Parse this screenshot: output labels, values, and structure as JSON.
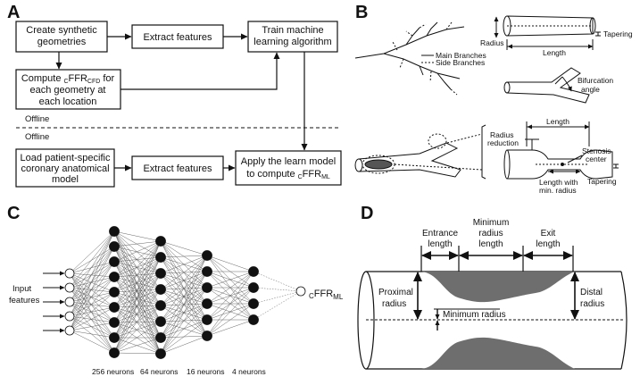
{
  "panels": {
    "a": "A",
    "b": "B",
    "c": "C",
    "d": "D"
  },
  "panel_a": {
    "box1_l1": "Create synthetic",
    "box1_l2": "geometries",
    "box2": "Extract features",
    "box3_l1": "Train machine",
    "box3_l2": "learning algorithm",
    "box4_l1a": "Compute",
    "box4_l1sub1": "C",
    "box4_l1b": "FFR",
    "box4_l1sub2": "CFD",
    "box4_l1c": "for",
    "box4_l2": "each geometry at",
    "box4_l3": "each location",
    "offline": "Offline",
    "online": "Offline",
    "box5_l1": "Load patient-specific",
    "box5_l2": "coronary anatomical",
    "box5_l3": "model",
    "box6": "Extract features",
    "box7_l1": "Apply the learn model",
    "box7_l2a": "to compute",
    "box7_l2sub1": "C",
    "box7_l2b": "FFR",
    "box7_l2sub2": "ML"
  },
  "panel_b": {
    "main_branches": "Main Branches",
    "side_branches": "Side Branches",
    "radius": "Radius",
    "length": "Length",
    "tapering": "Tapering",
    "bifurcation_l1": "Bifurcation",
    "bifurcation_l2": "angle",
    "length2": "Length",
    "radius_red_l1": "Radius",
    "radius_red_l2": "reduction",
    "stenosis_l1": "Stenosis",
    "stenosis_l2": "center",
    "len_min_l1": "Length with",
    "len_min_l2": "min. radius",
    "tapering2": "Tapering"
  },
  "panel_c": {
    "input_l1": "Input",
    "input_l2": "features",
    "output_a": "C",
    "output_b": "FFR",
    "output_sub": "ML",
    "layer1": "256 neurons",
    "layer2": "64 neurons",
    "layer3": "16 neurons",
    "layer4": "4 neurons"
  },
  "panel_d": {
    "entrance_l1": "Entrance",
    "entrance_l2": "length",
    "minimum_l1": "Minimum",
    "minimum_l2": "radius",
    "minimum_l3": "length",
    "exit_l1": "Exit",
    "exit_l2": "length",
    "proximal_l1": "Proximal",
    "proximal_l2": "radius",
    "minradius": "Minimum radius",
    "distal_l1": "Distal",
    "distal_l2": "radius"
  }
}
